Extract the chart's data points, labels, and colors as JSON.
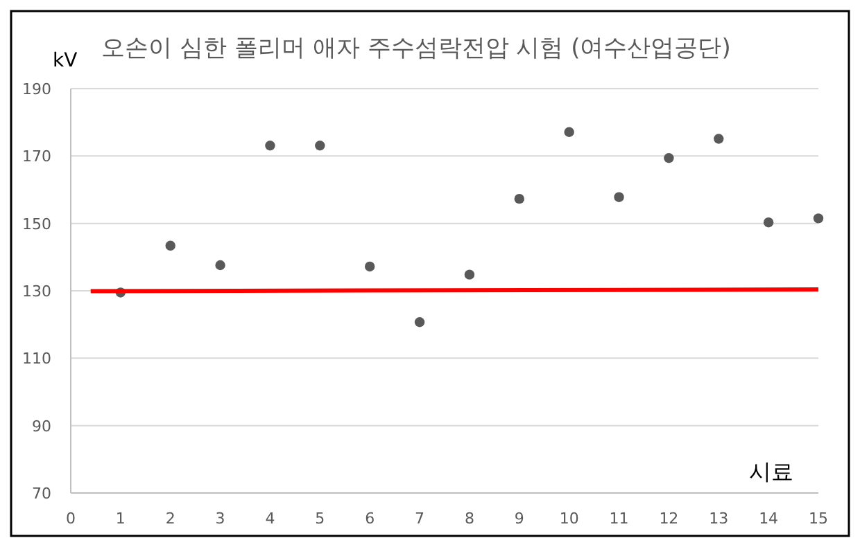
{
  "chart_data": {
    "type": "scatter",
    "title": "오손이 심한 폴리머 애자 주수섬락전압 시험 (여수산업공단)",
    "ylabel": "kV",
    "xlabel": "시료",
    "x": [
      1,
      2,
      3,
      4,
      5,
      6,
      7,
      8,
      9,
      10,
      11,
      12,
      13,
      14,
      15
    ],
    "series": [
      {
        "color": "#595959",
        "marker": "circle",
        "values": [
          129.5,
          143.4,
          137.6,
          173.1,
          173.1,
          137.2,
          120.7,
          134.8,
          157.3,
          177.1,
          157.8,
          169.4,
          175.1,
          150.3,
          151.5
        ]
      },
      {
        "type": "line",
        "color": "#ff0000",
        "x": [
          0.4,
          15
        ],
        "values": [
          129.9,
          130.4
        ]
      }
    ],
    "xlim": [
      0,
      15
    ],
    "xticks": [
      0,
      1,
      2,
      3,
      4,
      5,
      6,
      7,
      8,
      9,
      10,
      11,
      12,
      13,
      14,
      15
    ],
    "ylim": [
      70,
      190
    ],
    "yticks": [
      70,
      90,
      110,
      130,
      150,
      170,
      190
    ],
    "grid": "y"
  }
}
